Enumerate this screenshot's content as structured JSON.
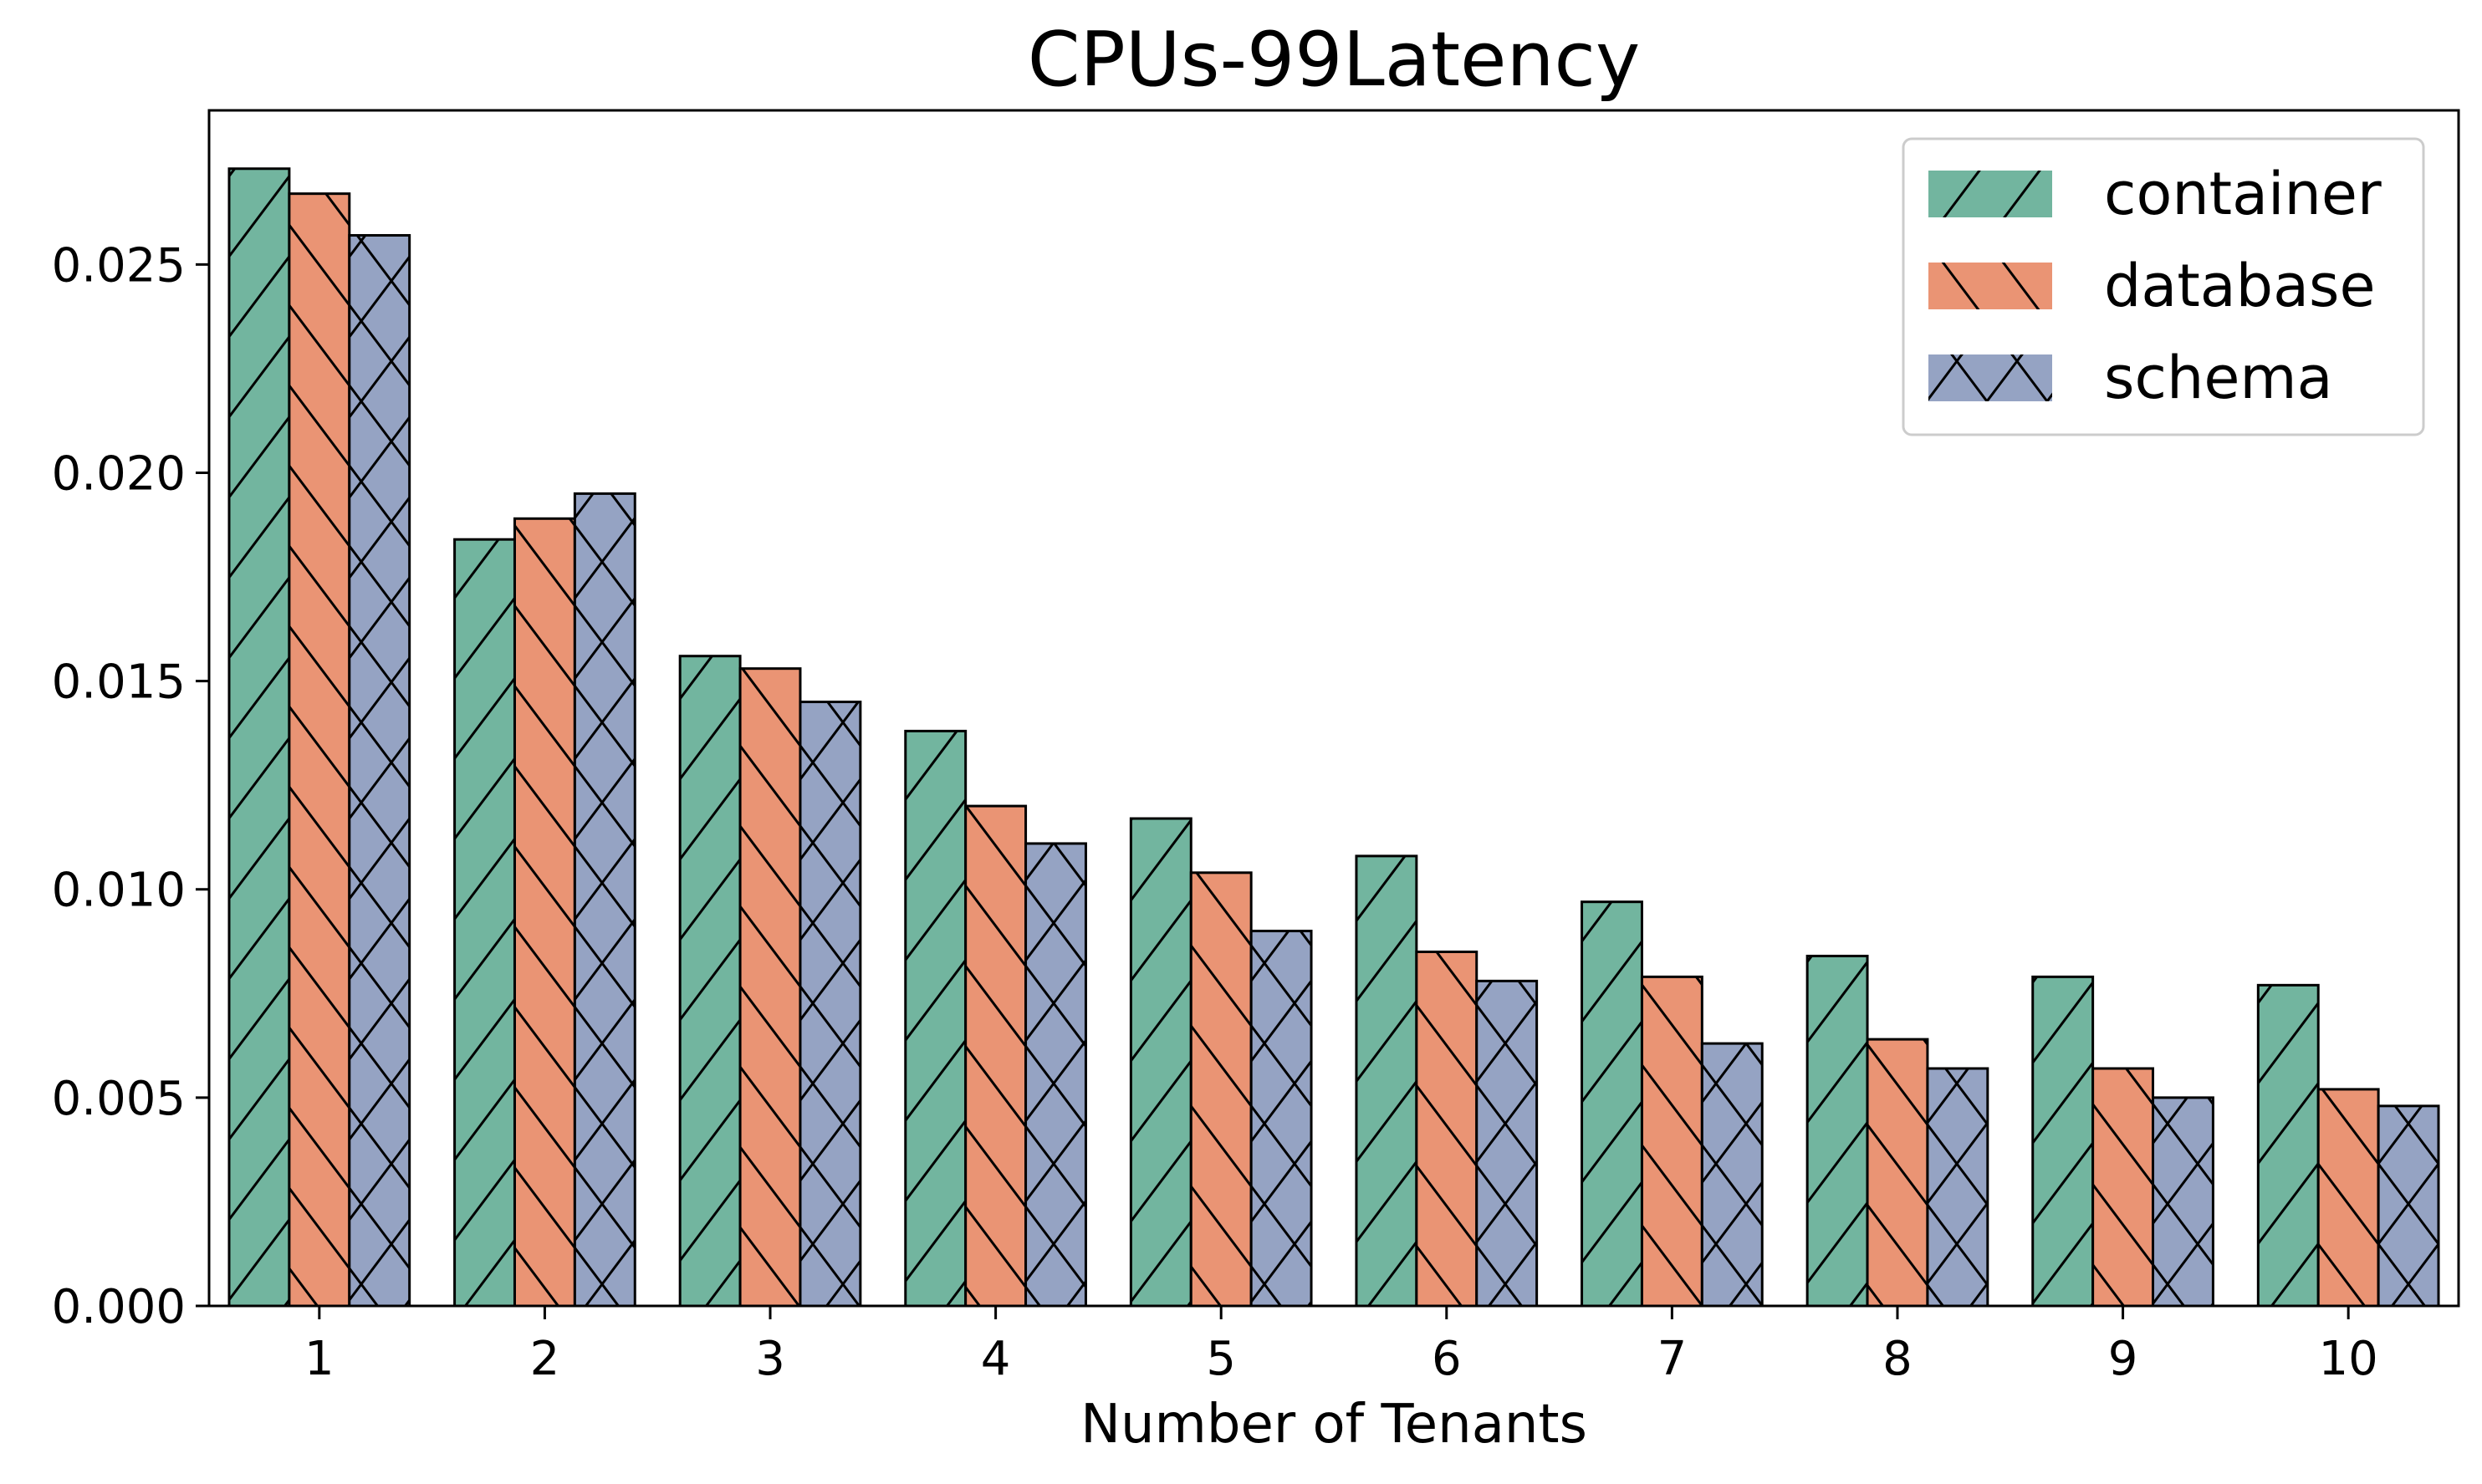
{
  "chart_data": {
    "type": "bar",
    "title": "CPUs-99Latency",
    "xlabel": "Number of Tenants",
    "ylabel": "",
    "categories": [
      "1",
      "2",
      "3",
      "4",
      "5",
      "6",
      "7",
      "8",
      "9",
      "10"
    ],
    "ylim": [
      0,
      0.0287
    ],
    "yticks": [
      "0.000",
      "0.005",
      "0.010",
      "0.015",
      "0.020",
      "0.025"
    ],
    "grid": false,
    "legend_position": "top-right",
    "series": [
      {
        "name": "container",
        "color": "#72b59f",
        "hatch": "forward-slash",
        "values": [
          0.0273,
          0.0184,
          0.0156,
          0.0138,
          0.0117,
          0.0108,
          0.0097,
          0.0084,
          0.0079,
          0.0077
        ]
      },
      {
        "name": "database",
        "color": "#ea9474",
        "hatch": "back-slash",
        "values": [
          0.0267,
          0.0189,
          0.0153,
          0.012,
          0.0104,
          0.0085,
          0.0079,
          0.0064,
          0.0057,
          0.0052
        ]
      },
      {
        "name": "schema",
        "color": "#95a3c3",
        "hatch": "cross",
        "values": [
          0.0257,
          0.0195,
          0.0145,
          0.0111,
          0.009,
          0.0078,
          0.0063,
          0.0057,
          0.005,
          0.0048
        ]
      }
    ]
  }
}
